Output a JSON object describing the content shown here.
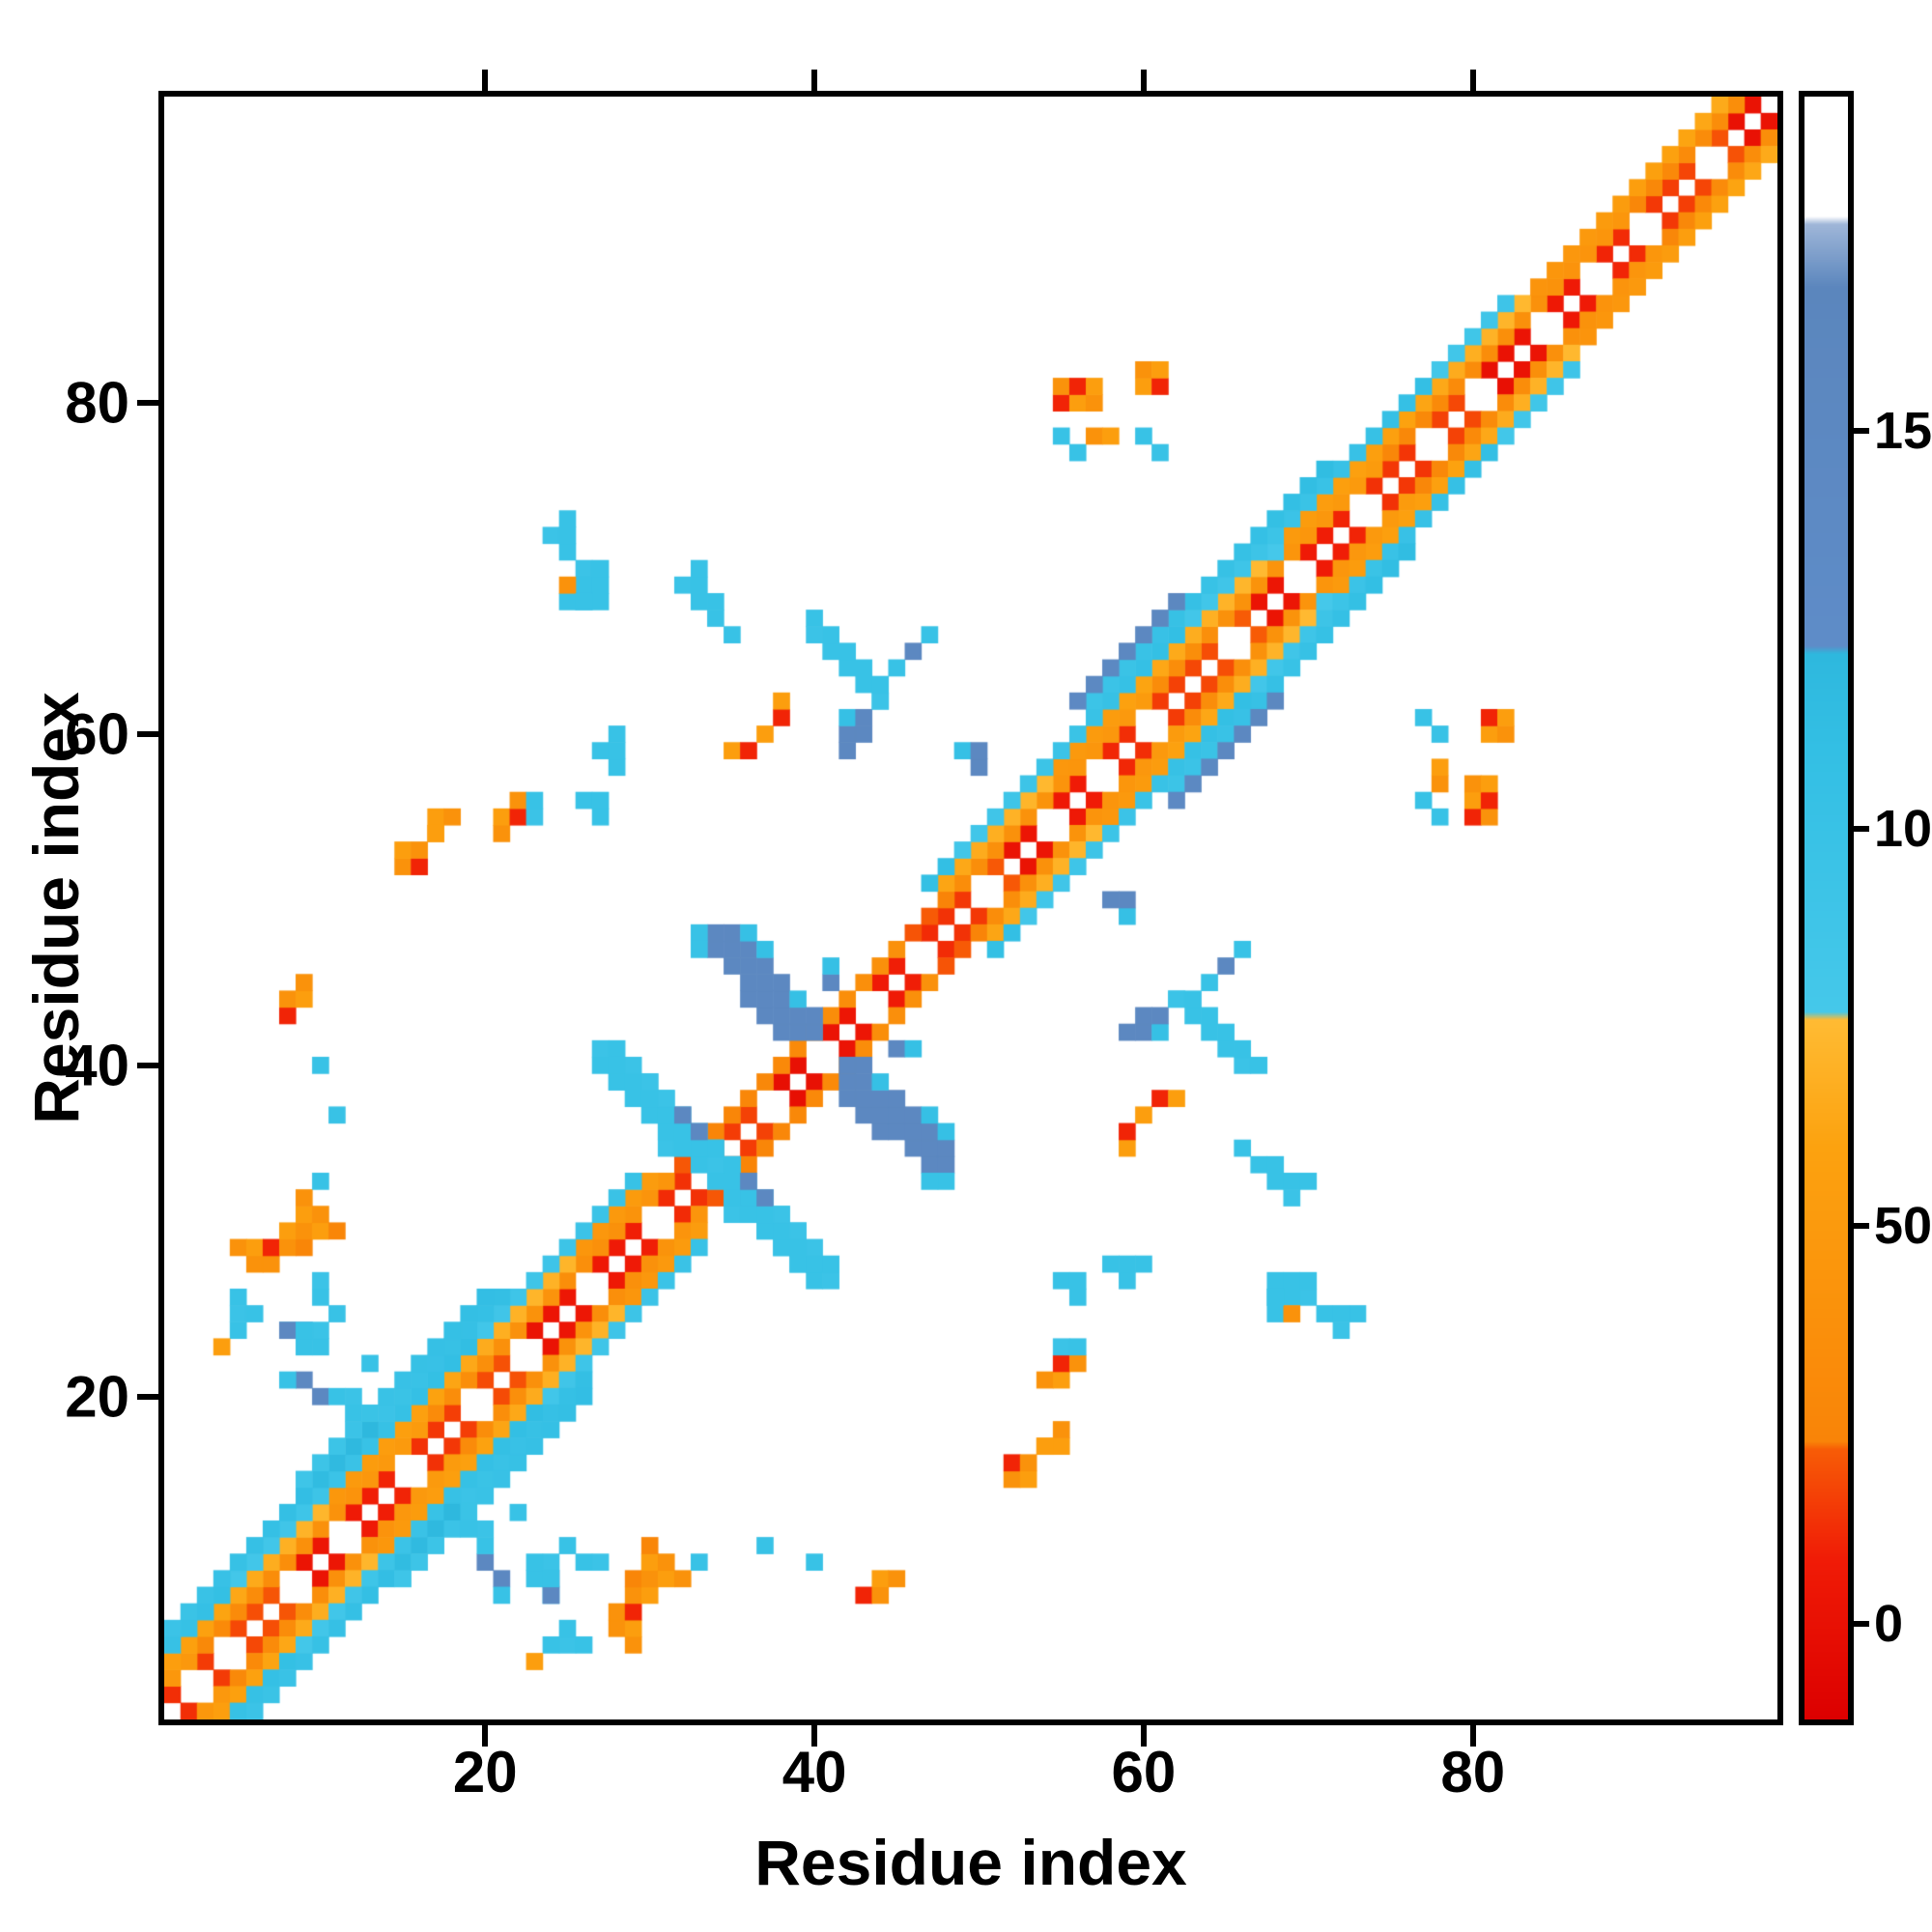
{
  "figure": {
    "background": "#ffffff"
  },
  "chart_data": {
    "type": "heatmap",
    "title": "",
    "xlabel": "Residue index",
    "ylabel": "Residue index",
    "x_range": [
      0.5,
      98.5
    ],
    "y_range": [
      0.5,
      98.5
    ],
    "n_residues": 98,
    "x_ticks": [
      20,
      40,
      60,
      80
    ],
    "y_ticks": [
      20,
      40,
      60,
      80
    ],
    "grid": false,
    "background_value_color": "#ffffff",
    "colorbar": {
      "position": "right",
      "orientation": "vertical",
      "range": [
        -12,
        192
      ],
      "ticks": [
        0,
        50,
        100,
        150
      ]
    },
    "colormap": {
      "stops": [
        [
          -12,
          "#dc0000"
        ],
        [
          8,
          "#f01b06"
        ],
        [
          22,
          "#f75c06"
        ],
        [
          23,
          "#f98408"
        ],
        [
          60,
          "#fca20f"
        ],
        [
          76,
          "#ffbb33"
        ],
        [
          77,
          "#45c8ea"
        ],
        [
          110,
          "#33bfe4"
        ],
        [
          122,
          "#2eb8de"
        ],
        [
          123,
          "#5e8cc8"
        ],
        [
          168,
          "#5b86bd"
        ],
        [
          176,
          "#9fb6d8"
        ],
        [
          177,
          "#ffffff"
        ],
        [
          192,
          "#ffffff"
        ]
      ]
    },
    "heatmap": {
      "symmetric": true,
      "band_gaps": [
        3,
        5,
        9,
        12,
        16,
        20,
        23,
        27,
        31,
        34,
        38,
        41,
        44,
        47,
        51,
        55,
        58,
        61,
        66,
        70,
        74,
        78,
        81,
        85,
        88,
        91,
        95
      ],
      "band_segments": [
        {
          "from": 2,
          "to": 14,
          "offsets": [
            [
              1,
              12
            ],
            [
              2,
              38
            ],
            [
              3,
              60
            ],
            [
              4,
              95
            ],
            [
              5,
              105
            ]
          ]
        },
        {
          "from": 15,
          "to": 26,
          "offsets": [
            [
              1,
              12
            ],
            [
              2,
              42
            ],
            [
              3,
              62
            ],
            [
              4,
              98
            ],
            [
              5,
              108
            ],
            [
              6,
              100
            ]
          ]
        },
        {
          "from": 27,
          "to": 33,
          "offsets": [
            [
              1,
              10
            ],
            [
              2,
              34
            ],
            [
              3,
              58
            ],
            [
              4,
              95
            ]
          ]
        },
        {
          "from": 34,
          "to": 50,
          "offsets": [
            [
              1,
              8
            ],
            [
              2,
              30
            ]
          ]
        },
        {
          "from": 51,
          "to": 61,
          "offsets": [
            [
              1,
              12
            ],
            [
              2,
              40
            ],
            [
              3,
              60
            ],
            [
              4,
              96
            ]
          ]
        },
        {
          "from": 62,
          "to": 68,
          "offsets": [
            [
              1,
              12
            ],
            [
              2,
              42
            ],
            [
              3,
              64
            ],
            [
              4,
              97
            ],
            [
              5,
              107
            ],
            [
              6,
              148
            ]
          ]
        },
        {
          "from": 69,
          "to": 76,
          "offsets": [
            [
              1,
              12
            ],
            [
              2,
              42
            ],
            [
              3,
              64
            ],
            [
              4,
              97
            ],
            [
              5,
              100
            ]
          ]
        },
        {
          "from": 77,
          "to": 86,
          "offsets": [
            [
              1,
              10
            ],
            [
              2,
              36
            ],
            [
              3,
              60
            ],
            [
              4,
              95
            ]
          ]
        },
        {
          "from": 87,
          "to": 98,
          "offsets": [
            [
              1,
              10
            ],
            [
              2,
              36
            ],
            [
              3,
              56
            ]
          ]
        }
      ],
      "cells": [
        [
          34,
          47,
          150
        ],
        [
          34,
          48,
          150
        ],
        [
          35,
          46,
          150
        ],
        [
          35,
          47,
          150
        ],
        [
          35,
          48,
          150
        ],
        [
          36,
          44,
          150
        ],
        [
          36,
          45,
          150
        ],
        [
          36,
          46,
          150
        ],
        [
          36,
          47,
          150
        ],
        [
          36,
          48,
          105
        ],
        [
          37,
          43,
          150
        ],
        [
          37,
          44,
          150
        ],
        [
          37,
          45,
          150
        ],
        [
          37,
          46,
          150
        ],
        [
          37,
          47,
          105
        ],
        [
          38,
          42,
          150
        ],
        [
          38,
          43,
          150
        ],
        [
          38,
          44,
          150
        ],
        [
          38,
          45,
          150
        ],
        [
          39,
          42,
          150
        ],
        [
          39,
          43,
          150
        ],
        [
          39,
          44,
          105
        ],
        [
          40,
          42,
          150
        ],
        [
          40,
          43,
          150
        ],
        [
          41,
          45,
          150
        ],
        [
          41,
          46,
          105
        ],
        [
          33,
          48,
          100
        ],
        [
          33,
          47,
          100
        ],
        [
          27,
          40,
          100
        ],
        [
          27,
          41,
          95
        ],
        [
          28,
          39,
          100
        ],
        [
          28,
          40,
          100
        ],
        [
          28,
          41,
          100
        ],
        [
          29,
          38,
          100
        ],
        [
          29,
          39,
          100
        ],
        [
          30,
          37,
          100
        ],
        [
          30,
          38,
          100
        ],
        [
          30,
          39,
          95
        ],
        [
          31,
          36,
          100
        ],
        [
          31,
          37,
          100
        ],
        [
          31,
          38,
          100
        ],
        [
          32,
          35,
          100
        ],
        [
          32,
          36,
          150
        ],
        [
          32,
          37,
          100
        ],
        [
          33,
          34,
          100
        ],
        [
          33,
          35,
          100
        ],
        [
          33,
          36,
          100
        ],
        [
          34,
          34,
          95
        ],
        [
          34,
          35,
          100
        ],
        [
          35,
          33,
          100
        ],
        [
          35,
          34,
          100
        ],
        [
          35,
          31,
          95
        ],
        [
          35,
          32,
          100
        ],
        [
          36,
          31,
          100
        ],
        [
          36,
          32,
          100
        ],
        [
          36,
          33,
          150
        ],
        [
          37,
          30,
          100
        ],
        [
          37,
          31,
          100
        ],
        [
          37,
          32,
          150
        ],
        [
          38,
          29,
          100
        ],
        [
          38,
          30,
          100
        ],
        [
          38,
          31,
          95
        ],
        [
          39,
          28,
          100
        ],
        [
          39,
          29,
          100
        ],
        [
          39,
          30,
          95
        ],
        [
          40,
          28,
          100
        ],
        [
          40,
          29,
          95
        ],
        [
          5,
          24,
          100
        ],
        [
          8,
          24,
          100
        ],
        [
          9,
          24,
          150
        ],
        [
          9,
          23,
          100
        ],
        [
          10,
          23,
          100
        ],
        [
          10,
          24,
          95
        ],
        [
          10,
          20,
          150
        ],
        [
          11,
          20,
          100
        ],
        [
          12,
          19,
          100
        ],
        [
          12,
          20,
          95
        ],
        [
          11,
          25,
          100
        ],
        [
          9,
          21,
          150
        ],
        [
          8,
          21,
          100
        ],
        [
          13,
          22,
          100
        ],
        [
          11,
          37,
          100
        ],
        [
          5,
          29,
          40
        ],
        [
          6,
          28,
          40
        ],
        [
          6,
          29,
          55
        ],
        [
          7,
          28,
          40
        ],
        [
          7,
          29,
          10
        ],
        [
          8,
          29,
          40
        ],
        [
          8,
          30,
          55
        ],
        [
          9,
          29,
          25
        ],
        [
          9,
          30,
          40
        ],
        [
          10,
          30,
          55
        ],
        [
          17,
          54,
          40
        ],
        [
          17,
          55,
          55
        ],
        [
          18,
          55,
          40
        ],
        [
          21,
          54,
          40
        ],
        [
          21,
          55,
          55
        ],
        [
          22,
          55,
          10
        ],
        [
          22,
          56,
          40
        ],
        [
          23,
          55,
          95
        ],
        [
          23,
          56,
          100
        ],
        [
          26,
          56,
          100
        ],
        [
          27,
          55,
          100
        ],
        [
          27,
          56,
          100
        ],
        [
          27,
          59,
          100
        ],
        [
          28,
          58,
          100
        ],
        [
          28,
          59,
          100
        ],
        [
          28,
          60,
          100
        ],
        [
          35,
          59,
          55
        ],
        [
          36,
          59,
          10
        ],
        [
          42,
          59,
          150
        ],
        [
          42,
          60,
          150
        ],
        [
          42,
          61,
          105
        ],
        [
          43,
          60,
          150
        ],
        [
          43,
          61,
          150
        ],
        [
          44,
          62,
          100
        ],
        [
          45,
          64,
          100
        ],
        [
          46,
          65,
          150
        ],
        [
          47,
          66,
          100
        ],
        [
          49,
          59,
          105
        ],
        [
          50,
          58,
          150
        ],
        [
          50,
          59,
          150
        ],
        [
          55,
          78,
          100
        ],
        [
          55,
          80,
          10
        ],
        [
          55,
          81,
          40
        ],
        [
          56,
          77,
          100
        ],
        [
          56,
          80,
          55
        ],
        [
          56,
          81,
          10
        ],
        [
          57,
          78,
          40
        ],
        [
          57,
          80,
          40
        ],
        [
          57,
          81,
          55
        ],
        [
          58,
          78,
          55
        ],
        [
          60,
          78,
          100
        ],
        [
          60,
          81,
          55
        ],
        [
          60,
          82,
          40
        ],
        [
          61,
          77,
          100
        ],
        [
          61,
          81,
          10
        ],
        [
          61,
          82,
          55
        ],
        [
          62,
          44,
          95
        ],
        [
          63,
          43,
          100
        ],
        [
          63,
          44,
          100
        ],
        [
          64,
          42,
          100
        ],
        [
          64,
          43,
          100
        ],
        [
          65,
          41,
          100
        ],
        [
          65,
          42,
          100
        ],
        [
          66,
          40,
          95
        ],
        [
          66,
          41,
          100
        ],
        [
          67,
          40,
          100
        ],
        [
          60,
          37,
          55
        ],
        [
          61,
          38,
          10
        ],
        [
          62,
          38,
          55
        ],
        [
          66,
          35,
          100
        ],
        [
          67,
          34,
          100
        ],
        [
          68,
          33,
          100
        ],
        [
          68,
          34,
          100
        ],
        [
          69,
          32,
          95
        ],
        [
          69,
          33,
          100
        ],
        [
          70,
          33,
          100
        ],
        [
          68,
          26,
          100
        ],
        [
          68,
          27,
          100
        ],
        [
          69,
          26,
          100
        ],
        [
          69,
          27,
          100
        ],
        [
          70,
          26,
          95
        ],
        [
          70,
          27,
          100
        ],
        [
          71,
          25,
          100
        ],
        [
          73,
          25,
          100
        ],
        [
          52,
          15,
          40
        ],
        [
          52,
          16,
          10
        ],
        [
          53,
          15,
          55
        ],
        [
          53,
          16,
          40
        ],
        [
          54,
          17,
          55
        ],
        [
          23,
          4,
          55
        ],
        [
          24,
          8,
          150
        ],
        [
          24,
          9,
          100
        ],
        [
          25,
          5,
          95
        ],
        [
          25,
          6,
          100
        ],
        [
          26,
          5,
          100
        ],
        [
          26,
          10,
          100
        ],
        [
          27,
          10,
          95
        ],
        [
          30,
          10,
          55
        ],
        [
          30,
          11,
          25
        ],
        [
          31,
          9,
          55
        ],
        [
          31,
          10,
          40
        ],
        [
          32,
          9,
          40
        ],
        [
          33,
          10,
          100
        ],
        [
          40,
          10,
          100
        ],
        [
          43,
          8,
          10
        ],
        [
          44,
          8,
          40
        ],
        [
          44,
          9,
          55
        ],
        [
          45,
          9,
          40
        ],
        [
          24,
          72,
          95
        ],
        [
          25,
          68,
          100
        ],
        [
          25,
          69,
          40
        ],
        [
          25,
          72,
          100
        ],
        [
          26,
          68,
          100
        ]
      ]
    }
  },
  "accent_colors": {
    "red": "#ee1507",
    "orange": "#fb9a0b",
    "cyan": "#35c0e4",
    "blue": "#5e8cc8",
    "axis": "#000000",
    "background": "#ffffff"
  }
}
